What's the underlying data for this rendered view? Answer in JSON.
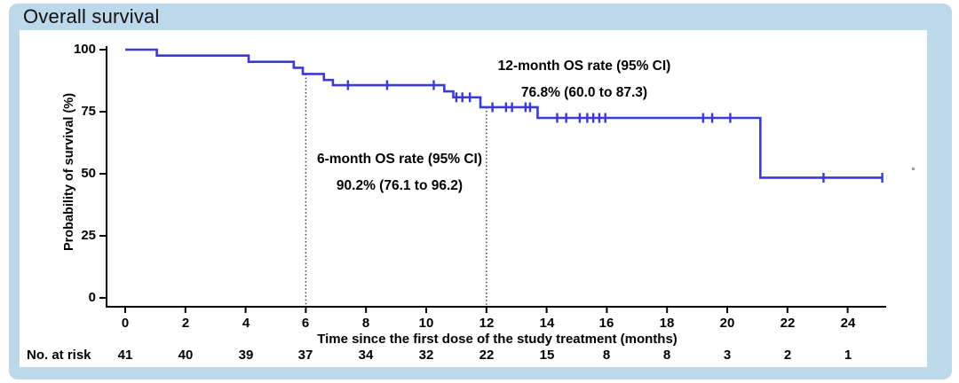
{
  "title": "Overall survival",
  "colors": {
    "card_bg": "#bdd7eb",
    "panel_bg": "#ffffff",
    "curve": "#3b3ad2",
    "axis": "#000000",
    "dotted": "#333333"
  },
  "chart_data": {
    "type": "line",
    "subtype": "kaplan-meier-step-curve",
    "title": "Overall survival",
    "xlabel": "Time since the first dose of the study treatment (months)",
    "ylabel": "Probability of survival (%)",
    "xlim": [
      0,
      25.6
    ],
    "ylim": [
      0,
      100
    ],
    "x_ticks": [
      "0",
      "2",
      "4",
      "6",
      "8",
      "10",
      "12",
      "14",
      "16",
      "18",
      "20",
      "22",
      "24"
    ],
    "x_tick_values": [
      0,
      2,
      4,
      6,
      8,
      10,
      12,
      14,
      16,
      18,
      20,
      22,
      24
    ],
    "y_ticks": [
      "100",
      "75",
      "50",
      "25",
      "0"
    ],
    "y_tick_values": [
      100,
      75,
      50,
      25,
      0
    ],
    "grid": false,
    "series": [
      {
        "name": "Overall survival",
        "step_points": [
          [
            0,
            100
          ],
          [
            1.05,
            97.6
          ],
          [
            4.1,
            95.1
          ],
          [
            5.6,
            92.7
          ],
          [
            5.9,
            90.2
          ],
          [
            6.6,
            87.8
          ],
          [
            6.9,
            85.7
          ],
          [
            10.6,
            83.2
          ],
          [
            10.9,
            80.8
          ],
          [
            11.8,
            76.8
          ],
          [
            13.7,
            72.5
          ],
          [
            21.1,
            48.4
          ]
        ],
        "end_month": 25.15
      }
    ],
    "censor_marks": [
      [
        7.4,
        85.7
      ],
      [
        8.7,
        85.7
      ],
      [
        10.25,
        85.7
      ],
      [
        11.0,
        80.8
      ],
      [
        11.2,
        80.8
      ],
      [
        11.45,
        80.8
      ],
      [
        12.2,
        76.8
      ],
      [
        12.65,
        76.8
      ],
      [
        12.85,
        76.8
      ],
      [
        13.3,
        76.8
      ],
      [
        13.45,
        76.8
      ],
      [
        14.35,
        72.5
      ],
      [
        14.65,
        72.5
      ],
      [
        15.1,
        72.5
      ],
      [
        15.35,
        72.5
      ],
      [
        15.55,
        72.5
      ],
      [
        15.75,
        72.5
      ],
      [
        15.95,
        72.5
      ],
      [
        19.2,
        72.5
      ],
      [
        19.5,
        72.5
      ],
      [
        20.1,
        72.5
      ],
      [
        23.2,
        48.4
      ],
      [
        25.15,
        48.4
      ]
    ],
    "reference_lines_x": [
      6,
      12
    ],
    "annotations": [
      {
        "id": "six-month",
        "line1": "6-month OS rate (95% CI)",
        "line2": "90.2% (76.1 to 96.2)"
      },
      {
        "id": "twelve-month",
        "line1": "12-month OS rate (95% CI)",
        "line2": "76.8% (60.0 to 87.3)"
      }
    ],
    "no_at_risk": {
      "label": "No. at risk",
      "values": [
        "41",
        "40",
        "39",
        "37",
        "34",
        "32",
        "22",
        "15",
        "8",
        "8",
        "3",
        "2",
        "1"
      ]
    }
  }
}
